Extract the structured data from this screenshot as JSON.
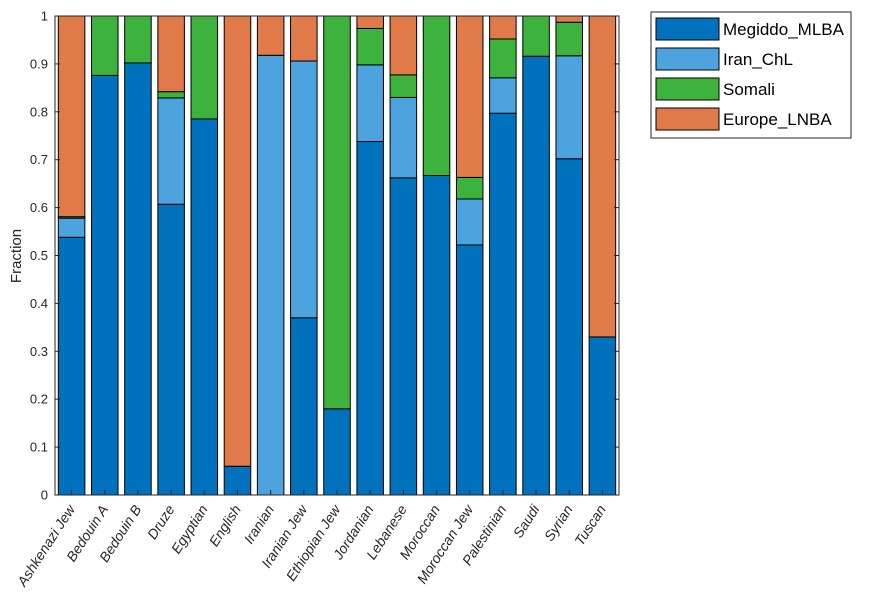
{
  "chart_data": {
    "type": "bar",
    "stacked": true,
    "title": "",
    "xlabel": "",
    "ylabel": "Fraction",
    "ylim": [
      0,
      1
    ],
    "yticks": [
      0,
      0.1,
      0.2,
      0.3,
      0.4,
      0.5,
      0.6,
      0.7,
      0.8,
      0.9,
      1
    ],
    "ytick_labels": [
      "0",
      "0.1",
      "0.2",
      "0.3",
      "0.4",
      "0.5",
      "0.6",
      "0.7",
      "0.8",
      "0.9",
      "1"
    ],
    "legend_position": "top-right outside",
    "categories": [
      "Ashkenazi Jew",
      "Bedouin A",
      "Bedouin B",
      "Druze",
      "Egyptian",
      "English",
      "Iranian",
      "Iranian Jew",
      "Ethiopian Jew",
      "Jordanian",
      "Lebanese",
      "Moroccan",
      "Moroccan Jew",
      "Palestinian",
      "Saudi",
      "Syrian",
      "Tuscan"
    ],
    "series": [
      {
        "name": "Megiddo_MLBA",
        "color": "#0072BD",
        "values": [
          0.538,
          0.876,
          0.902,
          0.607,
          0.785,
          0.06,
          0.0,
          0.37,
          0.18,
          0.738,
          0.662,
          0.667,
          0.522,
          0.797,
          0.916,
          0.702,
          0.33
        ]
      },
      {
        "name": "Iran_ChL",
        "color": "#4DA3DD",
        "values": [
          0.04,
          0.0,
          0.0,
          0.222,
          0.0,
          0.0,
          0.918,
          0.536,
          0.0,
          0.16,
          0.168,
          0.0,
          0.096,
          0.074,
          0.0,
          0.215,
          0.0
        ]
      },
      {
        "name": "Somali",
        "color": "#3DB33D",
        "values": [
          0.003,
          0.124,
          0.098,
          0.013,
          0.215,
          0.0,
          0.0,
          0.0,
          0.82,
          0.076,
          0.047,
          0.333,
          0.045,
          0.081,
          0.084,
          0.07,
          0.0
        ]
      },
      {
        "name": "Europe_LNBA",
        "color": "#E07A48",
        "values": [
          0.419,
          0.0,
          0.0,
          0.158,
          0.0,
          0.94,
          0.082,
          0.094,
          0.0,
          0.026,
          0.123,
          0.0,
          0.337,
          0.048,
          0.0,
          0.013,
          0.67
        ]
      }
    ]
  }
}
